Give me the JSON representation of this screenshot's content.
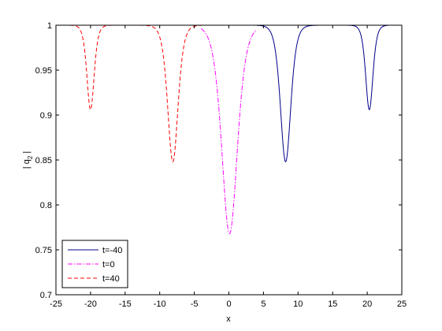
{
  "chart_data": {
    "type": "line",
    "xlabel": "x",
    "ylabel": "| q",
    "ylabel_subscript": "2",
    "ylabel_suffix": " |",
    "xlim": [
      -25,
      25
    ],
    "ylim": [
      0.7,
      1
    ],
    "xticks": [
      -25,
      -20,
      -15,
      -10,
      -5,
      0,
      5,
      10,
      15,
      20,
      25
    ],
    "yticks": [
      0.7,
      0.75,
      0.8,
      0.85,
      0.9,
      0.95,
      1
    ],
    "legend_position": "bottom-left",
    "series": [
      {
        "name": "t=-40",
        "color": "#00008b",
        "dash": "solid",
        "dips": [
          {
            "center": 8.2,
            "min": 0.848,
            "width": 1.0
          },
          {
            "center": 20.3,
            "min": 0.906,
            "width": 0.7
          }
        ]
      },
      {
        "name": "t=0",
        "color": "#ff00ff",
        "dash": "dashdot",
        "dips": [
          {
            "center": 0.1,
            "min": 0.768,
            "width": 1.5
          }
        ]
      },
      {
        "name": "t=40",
        "color": "#ff0000",
        "dash": "dashed",
        "dips": [
          {
            "center": -8.1,
            "min": 0.848,
            "width": 1.0
          },
          {
            "center": -20.0,
            "min": 0.906,
            "width": 0.7
          }
        ]
      }
    ],
    "x_domain": {
      "t=-40": [
        4.0,
        23.0
      ],
      "t=0": [
        -4.0,
        4.0
      ],
      "t=40": [
        -23.0,
        -4.0
      ]
    }
  }
}
